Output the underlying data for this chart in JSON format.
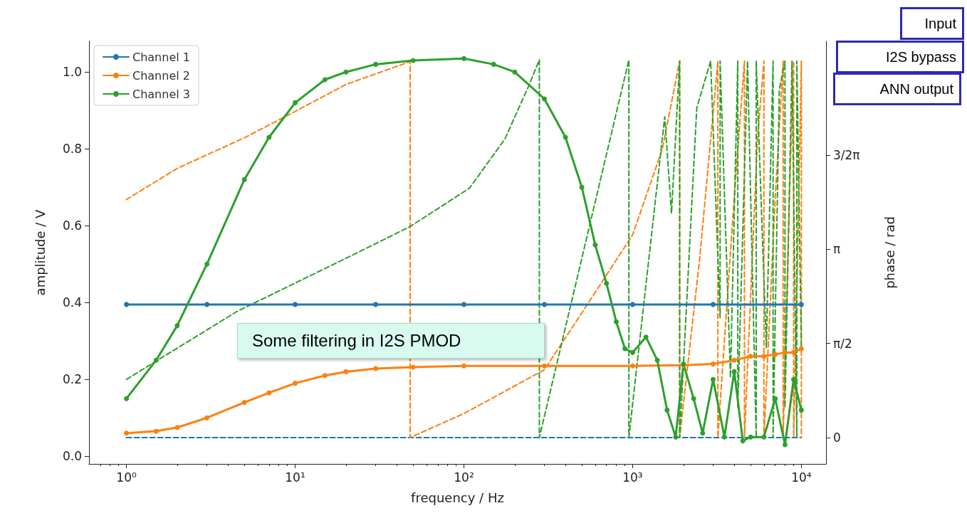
{
  "chart_data": {
    "type": "line",
    "xlabel": "frequency / Hz",
    "ylabel": "amplitude / V",
    "y2label": "phase / rad",
    "log": "x",
    "xlim": [
      0.6,
      14000
    ],
    "xticks": [
      {
        "value": 1,
        "label": "10⁰"
      },
      {
        "value": 10,
        "label": "10¹"
      },
      {
        "value": 100,
        "label": "10²"
      },
      {
        "value": 1000,
        "label": "10³"
      },
      {
        "value": 10000,
        "label": "10⁴"
      }
    ],
    "ylim": [
      -0.02,
      1.08
    ],
    "yticks": [
      {
        "value": 0,
        "label": "0.0"
      },
      {
        "value": 0.2,
        "label": "0.2"
      },
      {
        "value": 0.4,
        "label": "0.4"
      },
      {
        "value": 0.6,
        "label": "0.6"
      },
      {
        "value": 0.8,
        "label": "0.8"
      },
      {
        "value": 1,
        "label": "1.0"
      }
    ],
    "y2lim": [
      -0.44,
      6.61
    ],
    "y2ticks": [
      {
        "value": 0,
        "label": "0"
      },
      {
        "value": 1.5708,
        "label": "π/2"
      },
      {
        "value": 3.1416,
        "label": "π"
      },
      {
        "value": 4.7124,
        "label": "3/2π"
      }
    ],
    "grid": false,
    "legend": "top left",
    "annotations": [
      "Input",
      "I2S bypass",
      "ANN output",
      "Some filtering in I2S PMOD"
    ],
    "series": [
      {
        "name": "Channel 1",
        "color": "#1f77b4",
        "marker": "circle",
        "line_style": "solid",
        "x": [
          1,
          3,
          10,
          30,
          100,
          300,
          1000,
          3000,
          10000
        ],
        "values": [
          0.395,
          0.395,
          0.395,
          0.395,
          0.395,
          0.395,
          0.395,
          0.395,
          0.395
        ]
      },
      {
        "name": "Channel 2",
        "color": "#ff7f0e",
        "marker": "circle",
        "line_style": "solid",
        "x": [
          1,
          1.5,
          2,
          3,
          5,
          7,
          10,
          15,
          20,
          30,
          50,
          100,
          300,
          1000,
          2000,
          3000,
          4000,
          5000,
          6000,
          7000,
          8000,
          9000,
          10000
        ],
        "values": [
          0.06,
          0.065,
          0.075,
          0.1,
          0.14,
          0.165,
          0.19,
          0.21,
          0.22,
          0.228,
          0.232,
          0.235,
          0.235,
          0.235,
          0.237,
          0.24,
          0.25,
          0.26,
          0.26,
          0.265,
          0.27,
          0.27,
          0.28
        ]
      },
      {
        "name": "Channel 3",
        "color": "#2ca02c",
        "marker": "circle",
        "line_style": "solid",
        "x": [
          1,
          1.5,
          2,
          3,
          5,
          7,
          10,
          15,
          20,
          30,
          50,
          100,
          150,
          200,
          300,
          400,
          500,
          600,
          700,
          800,
          900,
          1000,
          1200,
          1400,
          1600,
          1800,
          2000,
          2300,
          2600,
          3000,
          3500,
          4000,
          4500,
          5000,
          6000,
          7000,
          8000,
          9000,
          10000
        ],
        "values": [
          0.15,
          0.25,
          0.34,
          0.5,
          0.72,
          0.83,
          0.92,
          0.98,
          1.0,
          1.02,
          1.03,
          1.035,
          1.02,
          1.0,
          0.93,
          0.83,
          0.7,
          0.55,
          0.45,
          0.35,
          0.28,
          0.27,
          0.31,
          0.25,
          0.12,
          0.05,
          0.24,
          0.15,
          0.06,
          0.2,
          0.05,
          0.22,
          0.04,
          0.05,
          0.05,
          0.15,
          0.03,
          0.2,
          0.12
        ]
      },
      {
        "color": "#1f77b4",
        "axis": "y2",
        "marker": "none",
        "line_style": "dashed",
        "x": [
          1,
          10000
        ],
        "values": [
          0,
          0
        ]
      },
      {
        "color": "#ff7f0e",
        "axis": "y2",
        "marker": "none",
        "line_style": "dashed",
        "x": [
          1,
          2,
          5,
          10,
          20,
          48,
          48,
          100,
          300,
          500,
          1000,
          1500,
          1900,
          1900,
          2500,
          3200,
          3200,
          4000,
          4600,
          4600,
          5500,
          6000,
          6000,
          7000,
          7800,
          7800,
          8500,
          9000,
          9000,
          9500,
          10000,
          10000
        ],
        "values": [
          3.97,
          4.49,
          5.0,
          5.44,
          5.89,
          6.27,
          0,
          0.4,
          1.13,
          2.08,
          3.38,
          4.81,
          6.28,
          0,
          3.0,
          6.28,
          0,
          4.0,
          6.28,
          0,
          5.0,
          6.28,
          0,
          4.0,
          6.28,
          0,
          4.0,
          6.28,
          0,
          3.0,
          6.28,
          0
        ]
      },
      {
        "color": "#2ca02c",
        "axis": "y2",
        "marker": "none",
        "line_style": "dashed",
        "x": [
          1,
          4.5,
          27,
          48,
          108,
          175,
          240,
          280,
          280,
          950,
          950,
          1550,
          1700,
          1900,
          1900,
          2400,
          2900,
          3300,
          3300,
          3800,
          4200,
          4200,
          4800,
          5400,
          5400,
          6200,
          6800,
          6800,
          7400,
          8000,
          8000,
          8800,
          9400,
          9400,
          10000
        ],
        "values": [
          0.97,
          2.1,
          3.17,
          3.52,
          4.16,
          4.98,
          5.84,
          6.3,
          0,
          6.3,
          0,
          5.35,
          3.74,
          6.28,
          0,
          5.5,
          6.28,
          2.0,
          6.28,
          1.0,
          6.28,
          0.5,
          6.28,
          0,
          6.28,
          1.5,
          6.28,
          0,
          5.8,
          6.28,
          0.5,
          6.28,
          0,
          6.28,
          1.5
        ]
      }
    ]
  }
}
